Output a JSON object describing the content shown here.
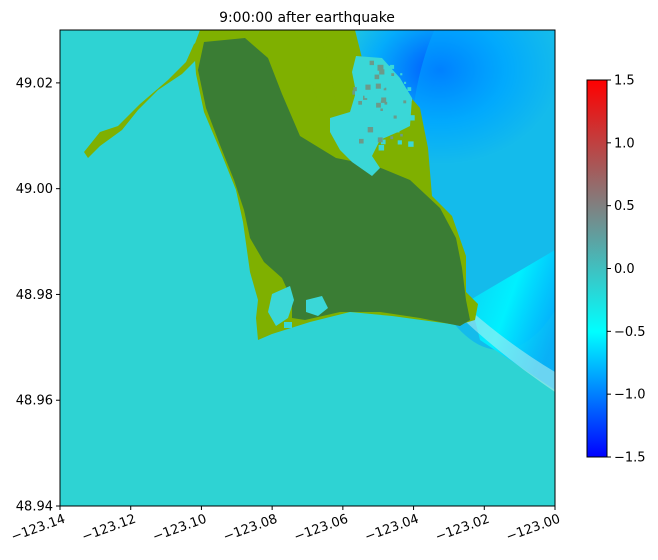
{
  "chart_data": {
    "type": "heatmap",
    "title": "9:00:00 after earthquake",
    "xlabel": "",
    "ylabel": "",
    "xlim": [
      -123.14,
      -123.0
    ],
    "ylim": [
      48.94,
      49.03
    ],
    "x_ticks": [
      -123.14,
      -123.12,
      -123.1,
      -123.08,
      -123.06,
      -123.04,
      -123.02,
      -123.0
    ],
    "x_tick_labels": [
      "−123.14",
      "−123.12",
      "−123.10",
      "−123.08",
      "−123.06",
      "−123.04",
      "−123.02",
      "−123.00"
    ],
    "y_ticks": [
      48.94,
      48.96,
      48.98,
      49.0,
      49.02
    ],
    "y_tick_labels": [
      "48.94",
      "48.96",
      "48.98",
      "49.00",
      "49.02"
    ],
    "grid": false,
    "colorbar": {
      "range": [
        -1.5,
        1.5
      ],
      "ticks": [
        -1.5,
        -1.0,
        -0.5,
        0.0,
        0.5,
        1.0,
        1.5
      ],
      "tick_labels": [
        "−1.5",
        "−1.0",
        "−0.5",
        "0.0",
        "0.5",
        "1.0",
        "1.5"
      ],
      "colors": [
        "#0000ff",
        "#00ffff",
        "#808080",
        "#ff0000"
      ]
    },
    "land_colors": {
      "dry_land": "#3a7d34",
      "wet_land": "#7fb000",
      "flooded": "#3ad7d7"
    },
    "surface_colors": {
      "background_water": "#2ed3d3",
      "drawdown_deep": "#0052ff",
      "drawdown_mid": "#00a8ff",
      "plume": "#00f0ff"
    }
  }
}
